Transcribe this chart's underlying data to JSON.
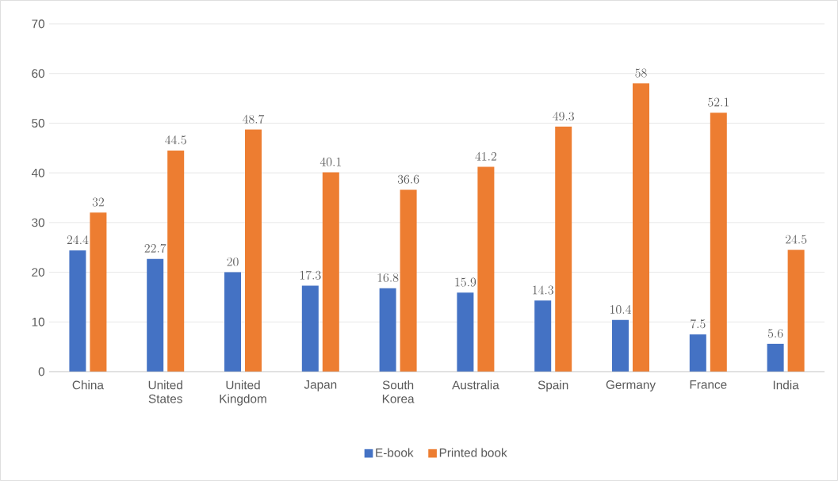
{
  "chart_data": {
    "type": "bar",
    "categories": [
      "China",
      "United States",
      "United Kingdom",
      "Japan",
      "South Korea",
      "Australia",
      "Spain",
      "Germany",
      "France",
      "India"
    ],
    "series": [
      {
        "name": "E-book",
        "color": "#4472c4",
        "values": [
          24.4,
          22.7,
          20,
          17.3,
          16.8,
          15.9,
          14.3,
          10.4,
          7.5,
          5.6
        ]
      },
      {
        "name": "Printed book",
        "color": "#ed7d31",
        "values": [
          32,
          44.5,
          48.7,
          40.1,
          36.6,
          41.2,
          49.3,
          58,
          52.1,
          24.5
        ]
      }
    ],
    "ylim": [
      0,
      70
    ],
    "yticks": [
      0,
      10,
      20,
      30,
      40,
      50,
      60,
      70
    ],
    "grid": "y",
    "legend": "bottom",
    "data_labels": true
  }
}
